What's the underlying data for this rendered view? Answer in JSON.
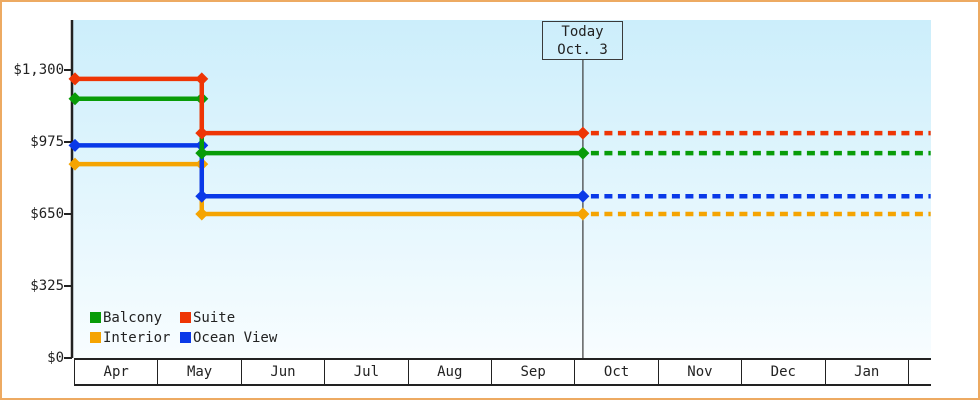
{
  "page": {
    "background_color": "#ffffff",
    "border_color": "#edaa62"
  },
  "today_marker": {
    "line1": "Today",
    "line2": "Oct. 3"
  },
  "legend": {
    "items": [
      {
        "label": "Balcony",
        "color": "#089c08"
      },
      {
        "label": "Suite",
        "color": "#ee3505"
      },
      {
        "label": "Interior",
        "color": "#f5a402"
      },
      {
        "label": "Ocean View",
        "color": "#0939e8"
      }
    ]
  },
  "chart_data": {
    "type": "line",
    "title": "",
    "xlabel": "",
    "ylabel": "",
    "x_axis": {
      "categories": [
        "Apr",
        "May",
        "Jun",
        "Jul",
        "Aug",
        "Sep",
        "Oct",
        "Nov",
        "Dec",
        "Jan"
      ]
    },
    "y_axis": {
      "ticks": [
        {
          "label": "$1,300",
          "value": 1300
        },
        {
          "label": "$975",
          "value": 975
        },
        {
          "label": "$650",
          "value": 650
        },
        {
          "label": "$325",
          "value": 325
        },
        {
          "label": "$0",
          "value": 0
        }
      ],
      "ylim": [
        0,
        1525
      ]
    },
    "today": {
      "label": "Today",
      "date": "Oct. 3",
      "x_months_from_apr1": 6.09
    },
    "series": [
      {
        "name": "Balcony",
        "color": "#089c08",
        "initial_price": 1170,
        "price_after_mid_may_drop": 925,
        "drop_x_months_from_apr1": 1.52,
        "projected_price_after_today": 925
      },
      {
        "name": "Suite",
        "color": "#ee3505",
        "initial_price": 1260,
        "price_after_mid_may_drop": 1015,
        "drop_x_months_from_apr1": 1.52,
        "projected_price_after_today": 1015
      },
      {
        "name": "Interior",
        "color": "#f5a402",
        "initial_price": 875,
        "price_after_mid_may_drop": 650,
        "drop_x_months_from_apr1": 1.52,
        "projected_price_after_today": 650
      },
      {
        "name": "Ocean View",
        "color": "#0939e8",
        "initial_price": 960,
        "price_after_mid_may_drop": 730,
        "drop_x_months_from_apr1": 1.52,
        "projected_price_after_today": 730
      }
    ],
    "projection": {
      "style": "dotted",
      "starts_at": "today",
      "end_x_months_from_apr1": 10.26
    },
    "layout": {
      "grid": false,
      "legend_position": "bottom-left",
      "plot_background_gradient": [
        "#cceefb",
        "#f8fdff"
      ],
      "solid_before_today": true,
      "marker_shape": "diamond"
    }
  }
}
